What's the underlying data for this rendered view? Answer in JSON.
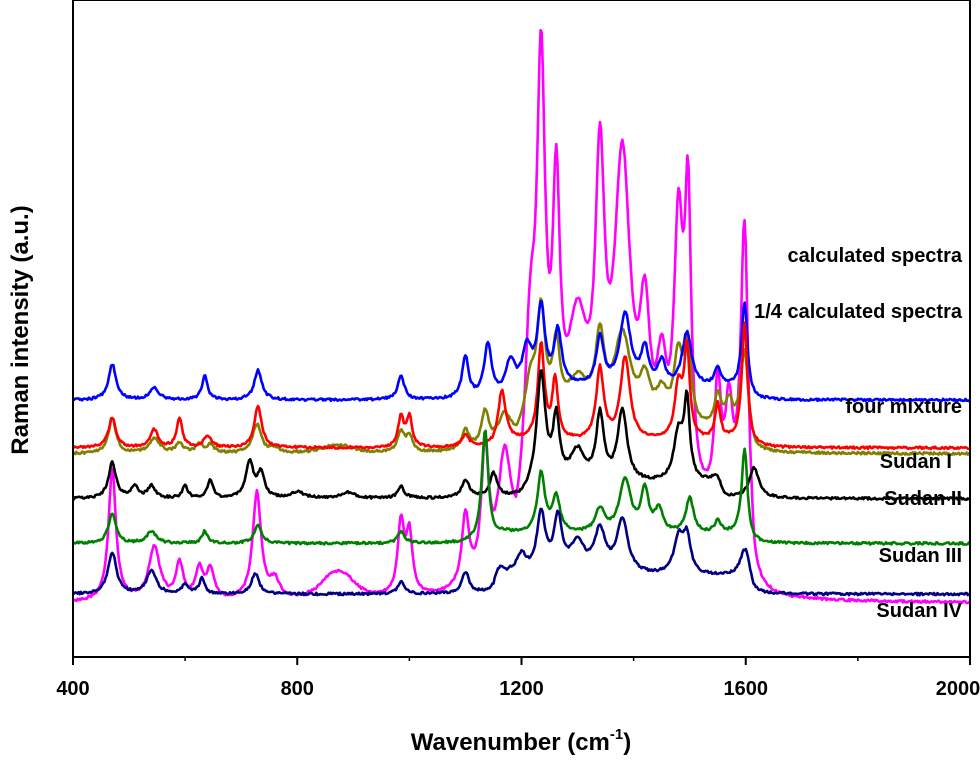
{
  "chart_data": {
    "type": "line",
    "xlabel": "Wavenumber",
    "xlabel_unit": "(cm",
    "xlabel_exp": "-1",
    "xlabel_close": ")",
    "ylabel": "Raman intensity (a.u.)",
    "xlim": [
      400,
      2000
    ],
    "xticks": [
      "400",
      "800",
      "1200",
      "1600",
      "2000"
    ],
    "grid": false,
    "legend": "labels beside each curve (right side)",
    "series": [
      {
        "name": "calculated spectra",
        "color": "#ff00ff",
        "baseline": 0.9,
        "scale": 1.0,
        "peaks": [
          [
            470,
            2.2,
            8
          ],
          [
            545,
            0.9,
            12
          ],
          [
            590,
            0.6,
            8
          ],
          [
            625,
            0.5,
            8
          ],
          [
            645,
            0.5,
            8
          ],
          [
            728,
            1.8,
            9
          ],
          [
            760,
            0.3,
            10
          ],
          [
            860,
            0.3,
            25
          ],
          [
            885,
            0.3,
            25
          ],
          [
            985,
            1.2,
            7
          ],
          [
            1000,
            1.0,
            7
          ],
          [
            1100,
            1.2,
            8
          ],
          [
            1135,
            2.2,
            8
          ],
          [
            1170,
            2.0,
            15
          ],
          [
            1215,
            2.5,
            12
          ],
          [
            1235,
            6.7,
            9
          ],
          [
            1262,
            4.4,
            8
          ],
          [
            1300,
            2.8,
            25
          ],
          [
            1340,
            4.8,
            10
          ],
          [
            1380,
            5.5,
            18
          ],
          [
            1420,
            2.6,
            12
          ],
          [
            1450,
            1.8,
            12
          ],
          [
            1480,
            4.3,
            10
          ],
          [
            1497,
            4.6,
            7
          ],
          [
            1550,
            2.0,
            7
          ],
          [
            1570,
            1.6,
            8
          ],
          [
            1598,
            5.0,
            8
          ]
        ],
        "bands": [
          [
            1190,
            1615,
            1.3
          ]
        ]
      },
      {
        "name": "1/4 calculated spectra",
        "color": "#808000",
        "baseline": 3.4,
        "scale": 0.27,
        "peaks": [
          [
            470,
            2.2,
            8
          ],
          [
            545,
            0.9,
            12
          ],
          [
            590,
            0.6,
            8
          ],
          [
            625,
            0.5,
            8
          ],
          [
            645,
            0.5,
            8
          ],
          [
            728,
            1.8,
            9
          ],
          [
            760,
            0.3,
            10
          ],
          [
            860,
            0.3,
            25
          ],
          [
            885,
            0.3,
            25
          ],
          [
            985,
            1.2,
            7
          ],
          [
            1000,
            1.0,
            7
          ],
          [
            1100,
            1.2,
            8
          ],
          [
            1135,
            2.2,
            8
          ],
          [
            1170,
            2.0,
            15
          ],
          [
            1215,
            2.5,
            12
          ],
          [
            1235,
            6.7,
            9
          ],
          [
            1262,
            4.4,
            8
          ],
          [
            1300,
            2.8,
            25
          ],
          [
            1340,
            4.8,
            10
          ],
          [
            1380,
            5.5,
            18
          ],
          [
            1420,
            2.6,
            12
          ],
          [
            1450,
            1.8,
            12
          ],
          [
            1480,
            4.3,
            10
          ],
          [
            1497,
            4.6,
            7
          ],
          [
            1550,
            2.0,
            7
          ],
          [
            1570,
            1.6,
            8
          ],
          [
            1598,
            5.0,
            8
          ]
        ],
        "bands": [
          [
            1190,
            1615,
            1.3
          ]
        ]
      },
      {
        "name": "four  mixture",
        "color": "#0000ff",
        "baseline": 4.3,
        "scale": 1.0,
        "peaks": [
          [
            470,
            0.6,
            8
          ],
          [
            545,
            0.2,
            10
          ],
          [
            635,
            0.4,
            6
          ],
          [
            730,
            0.5,
            8
          ],
          [
            985,
            0.4,
            7
          ],
          [
            1100,
            0.7,
            7
          ],
          [
            1140,
            0.9,
            8
          ],
          [
            1180,
            0.6,
            10
          ],
          [
            1210,
            0.6,
            10
          ],
          [
            1235,
            1.3,
            8
          ],
          [
            1265,
            0.9,
            8
          ],
          [
            1340,
            0.8,
            8
          ],
          [
            1385,
            1.2,
            12
          ],
          [
            1420,
            0.6,
            8
          ],
          [
            1450,
            0.4,
            8
          ],
          [
            1495,
            0.9,
            10
          ],
          [
            1550,
            0.3,
            7
          ],
          [
            1598,
            1.5,
            6
          ]
        ],
        "bands": [
          [
            1180,
            1610,
            0.2
          ]
        ]
      },
      {
        "name": "Sudan I",
        "color": "#ff0000",
        "baseline": 3.5,
        "scale": 1.0,
        "peaks": [
          [
            470,
            0.5,
            8
          ],
          [
            545,
            0.3,
            8
          ],
          [
            590,
            0.5,
            6
          ],
          [
            640,
            0.2,
            8
          ],
          [
            730,
            0.7,
            8
          ],
          [
            985,
            0.5,
            6
          ],
          [
            1000,
            0.5,
            6
          ],
          [
            1100,
            0.2,
            8
          ],
          [
            1165,
            0.9,
            8
          ],
          [
            1235,
            1.6,
            7
          ],
          [
            1260,
            1.0,
            6
          ],
          [
            1340,
            1.2,
            8
          ],
          [
            1385,
            1.4,
            10
          ],
          [
            1480,
            0.9,
            8
          ],
          [
            1495,
            1.5,
            6
          ],
          [
            1550,
            0.6,
            6
          ],
          [
            1598,
            2.0,
            6
          ]
        ],
        "bands": [
          [
            1150,
            1610,
            0.1
          ]
        ]
      },
      {
        "name": "Sudan II",
        "color": "#000000",
        "baseline": 2.65,
        "scale": 1.0,
        "peaks": [
          [
            470,
            0.6,
            8
          ],
          [
            510,
            0.2,
            8
          ],
          [
            540,
            0.2,
            8
          ],
          [
            600,
            0.2,
            6
          ],
          [
            645,
            0.3,
            6
          ],
          [
            715,
            0.6,
            8
          ],
          [
            735,
            0.4,
            8
          ],
          [
            800,
            0.1,
            15
          ],
          [
            890,
            0.1,
            15
          ],
          [
            985,
            0.2,
            7
          ],
          [
            1100,
            0.3,
            8
          ],
          [
            1150,
            0.4,
            8
          ],
          [
            1235,
            1.8,
            9
          ],
          [
            1262,
            1.0,
            7
          ],
          [
            1300,
            0.5,
            15
          ],
          [
            1340,
            1.1,
            8
          ],
          [
            1380,
            1.2,
            10
          ],
          [
            1480,
            0.8,
            10
          ],
          [
            1495,
            1.3,
            6
          ],
          [
            1550,
            0.2,
            8
          ],
          [
            1615,
            0.5,
            10
          ]
        ],
        "bands": [
          [
            1200,
            1560,
            0.25
          ]
        ]
      },
      {
        "name": "Sudan III",
        "color": "#008000",
        "baseline": 1.9,
        "scale": 1.0,
        "peaks": [
          [
            470,
            0.5,
            8
          ],
          [
            540,
            0.2,
            10
          ],
          [
            635,
            0.2,
            6
          ],
          [
            730,
            0.3,
            8
          ],
          [
            985,
            0.2,
            7
          ],
          [
            1135,
            1.9,
            7
          ],
          [
            1235,
            1.0,
            8
          ],
          [
            1262,
            0.6,
            8
          ],
          [
            1340,
            0.4,
            10
          ],
          [
            1385,
            0.9,
            12
          ],
          [
            1420,
            0.7,
            8
          ],
          [
            1445,
            0.4,
            8
          ],
          [
            1500,
            0.6,
            8
          ],
          [
            1550,
            0.2,
            7
          ],
          [
            1598,
            1.5,
            6
          ]
        ],
        "bands": [
          [
            1140,
            1610,
            0.15
          ]
        ]
      },
      {
        "name": "Sudan IV",
        "color": "#000080",
        "baseline": 1.05,
        "scale": 1.0,
        "peaks": [
          [
            470,
            0.7,
            9
          ],
          [
            540,
            0.4,
            10
          ],
          [
            600,
            0.15,
            8
          ],
          [
            630,
            0.25,
            6
          ],
          [
            725,
            0.35,
            8
          ],
          [
            985,
            0.2,
            7
          ],
          [
            1100,
            0.35,
            8
          ],
          [
            1160,
            0.3,
            10
          ],
          [
            1200,
            0.3,
            10
          ],
          [
            1235,
            1.0,
            9
          ],
          [
            1265,
            0.9,
            9
          ],
          [
            1300,
            0.5,
            15
          ],
          [
            1340,
            0.7,
            12
          ],
          [
            1380,
            0.9,
            12
          ],
          [
            1480,
            0.6,
            10
          ],
          [
            1495,
            0.6,
            8
          ],
          [
            1600,
            0.5,
            10
          ]
        ],
        "bands": [
          [
            1150,
            1615,
            0.3
          ]
        ]
      }
    ]
  }
}
